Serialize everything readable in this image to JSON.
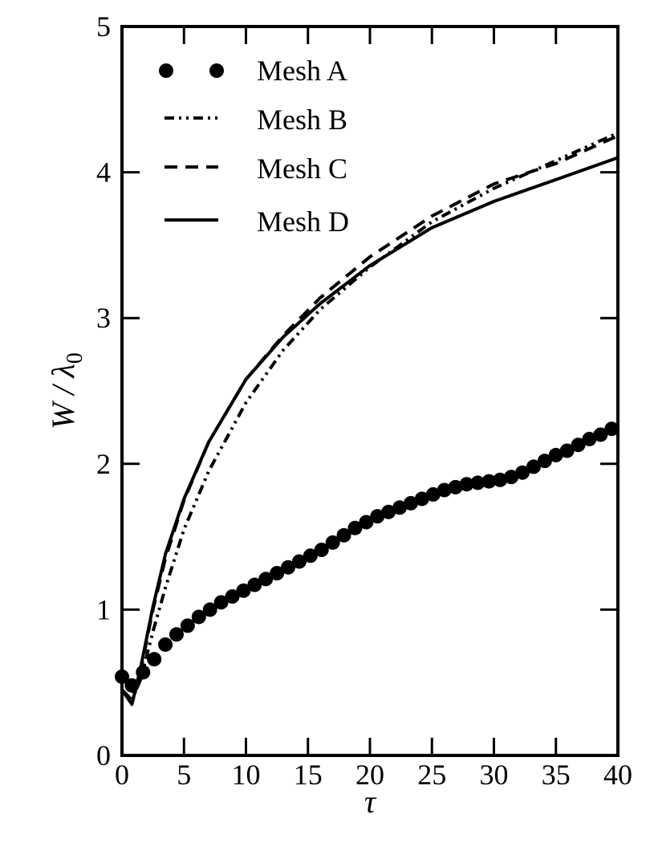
{
  "chart_data": {
    "type": "line",
    "xlabel": "τ",
    "ylabel": {
      "main": "W / λ",
      "sub": "0"
    },
    "xlim": [
      0,
      40
    ],
    "ylim": [
      0,
      5
    ],
    "xticks": [
      0,
      5,
      10,
      15,
      20,
      25,
      30,
      35,
      40
    ],
    "yticks": [
      0,
      1,
      2,
      3,
      4,
      5
    ],
    "xtick_labels": [
      "0",
      "5",
      "10",
      "15",
      "20",
      "25",
      "30",
      "35",
      "40"
    ],
    "ytick_labels": [
      "0",
      "1",
      "2",
      "3",
      "4",
      "5"
    ],
    "grid": false,
    "legend_position": "top-left",
    "series": [
      {
        "name": "Mesh A",
        "style": "dots",
        "color": "#000000",
        "x": [
          0,
          0.8,
          1.7,
          2.6,
          3.5,
          4.4,
          5.3,
          6.2,
          7.1,
          8.0,
          8.9,
          9.8,
          10.7,
          11.6,
          12.5,
          13.4,
          14.3,
          15.2,
          16.1,
          17.0,
          17.9,
          18.8,
          19.7,
          20.6,
          21.5,
          22.4,
          23.3,
          24.2,
          25.1,
          26.0,
          26.9,
          27.8,
          28.7,
          29.6,
          30.5,
          31.4,
          32.3,
          33.2,
          34.1,
          35.0,
          35.9,
          36.8,
          37.7,
          38.6,
          39.5
        ],
        "y": [
          0.54,
          0.48,
          0.57,
          0.66,
          0.76,
          0.83,
          0.89,
          0.95,
          1.0,
          1.05,
          1.09,
          1.13,
          1.17,
          1.21,
          1.25,
          1.29,
          1.33,
          1.37,
          1.41,
          1.46,
          1.51,
          1.56,
          1.6,
          1.64,
          1.67,
          1.7,
          1.73,
          1.76,
          1.79,
          1.82,
          1.84,
          1.86,
          1.87,
          1.88,
          1.89,
          1.91,
          1.94,
          1.98,
          2.02,
          2.06,
          2.09,
          2.13,
          2.17,
          2.2,
          2.24
        ]
      },
      {
        "name": "Mesh B",
        "style": "dash-dot-dot",
        "color": "#000000",
        "x": [
          0,
          0.8,
          1.5,
          2.5,
          3.5,
          5,
          7,
          10,
          13,
          16,
          20,
          25,
          30,
          35,
          40
        ],
        "y": [
          0.45,
          0.38,
          0.52,
          0.85,
          1.15,
          1.55,
          1.95,
          2.42,
          2.78,
          3.06,
          3.35,
          3.66,
          3.89,
          4.08,
          4.27
        ]
      },
      {
        "name": "Mesh C",
        "style": "dashed",
        "color": "#000000",
        "x": [
          0,
          0.8,
          1.5,
          2.5,
          3.5,
          5,
          7,
          10,
          13,
          16,
          20,
          25,
          30,
          35,
          40
        ],
        "y": [
          0.45,
          0.38,
          0.58,
          1.0,
          1.35,
          1.75,
          2.15,
          2.58,
          2.88,
          3.14,
          3.42,
          3.7,
          3.92,
          4.06,
          4.25
        ]
      },
      {
        "name": "Mesh D",
        "style": "solid",
        "color": "#000000",
        "x": [
          0,
          0.8,
          1.5,
          2.5,
          3.5,
          5,
          7,
          10,
          13,
          16,
          20,
          25,
          30,
          35,
          40
        ],
        "y": [
          0.45,
          0.35,
          0.6,
          1.02,
          1.38,
          1.76,
          2.15,
          2.58,
          2.87,
          3.1,
          3.36,
          3.62,
          3.8,
          3.95,
          4.1
        ]
      }
    ]
  }
}
